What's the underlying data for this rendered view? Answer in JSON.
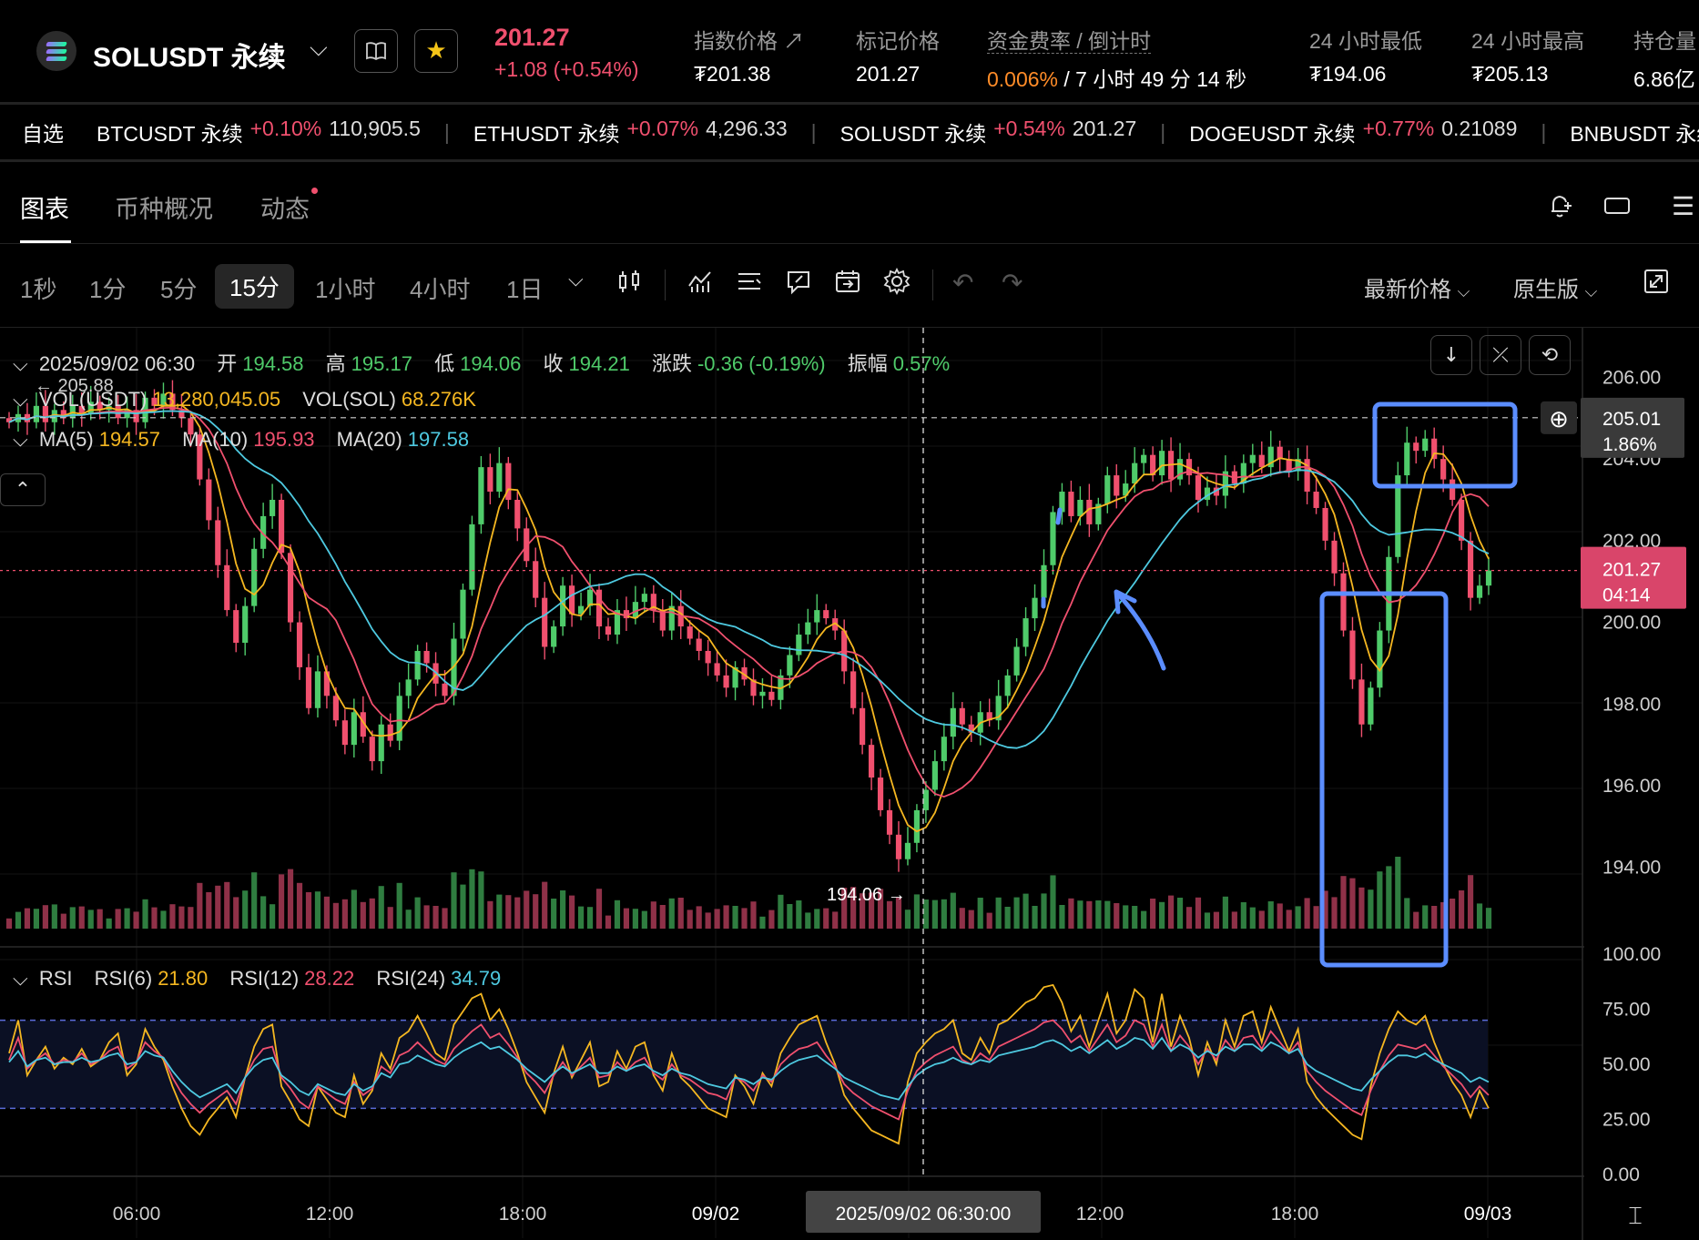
{
  "header": {
    "symbol": "SOLUSDT 永续",
    "last_price": "201.27",
    "change": "+1.08 (+0.54%)",
    "stats": [
      {
        "label": "指数价格",
        "value": "₮201.38"
      },
      {
        "label": "标记价格",
        "value": "201.27"
      },
      {
        "label": "资金费率 / 倒计时",
        "value_rate": "0.006%",
        "value_countdown": " / 7 小时 49 分 14 秒"
      },
      {
        "label": "24 小时最低",
        "value": "₮194.06"
      },
      {
        "label": "24 小时最高",
        "value": "₮205.13"
      },
      {
        "label": "持仓量",
        "value": "6.86亿"
      }
    ]
  },
  "ticker": {
    "favorites_label": "自选",
    "items": [
      {
        "name": "BTCUSDT 永续",
        "change": "+0.10%",
        "price": "110,905.5"
      },
      {
        "name": "ETHUSDT 永续",
        "change": "+0.07%",
        "price": "4,296.33"
      },
      {
        "name": "SOLUSDT 永续",
        "change": "+0.54%",
        "price": "201.27"
      },
      {
        "name": "DOGEUSDT 永续",
        "change": "+0.77%",
        "price": "0.21089"
      },
      {
        "name": "BNBUSDT 永续",
        "change": "",
        "price": ""
      }
    ]
  },
  "tabs": [
    "图表",
    "币种概况",
    "动态"
  ],
  "toolbar": {
    "timeframes": [
      "1秒",
      "1分",
      "5分",
      "15分",
      "1小时",
      "4小时",
      "1日"
    ],
    "active_timeframe": "15分",
    "price_type": "最新价格",
    "version": "原生版"
  },
  "legend": {
    "ohlc": {
      "date": "2025/09/02 06:30",
      "open_label": "开",
      "open": "194.58",
      "high_label": "高",
      "high": "195.17",
      "low_label": "低",
      "low": "194.06",
      "close_label": "收",
      "close": "194.21",
      "chg_label": "涨跌",
      "chg": "-0.36 (-0.19%)",
      "amp_label": "振幅",
      "amp": "0.57%"
    },
    "vol": {
      "usdt_label": "VOL(USDT)",
      "usdt": "13,280,045.05",
      "sol_label": "VOL(SOL)",
      "sol": "68.276K"
    },
    "ma": {
      "ma5_label": "MA(5)",
      "ma5": "194.57",
      "ma10_label": "MA(10)",
      "ma10": "195.93",
      "ma20_label": "MA(20)",
      "ma20": "197.58"
    },
    "rsi": {
      "label": "RSI",
      "rsi6_label": "RSI(6)",
      "rsi6": "21.80",
      "rsi12_label": "RSI(12)",
      "rsi12": "28.22",
      "rsi24_label": "RSI(24)",
      "rsi24": "34.79"
    }
  },
  "price_axis": [
    "206.00",
    "204.00",
    "202.00",
    "200.00",
    "198.00",
    "196.00",
    "194.00"
  ],
  "rsi_axis": [
    "100.00",
    "75.00",
    "50.00",
    "25.00",
    "0.00"
  ],
  "time_axis": [
    "06:00",
    "12:00",
    "18:00",
    "09/02",
    "12:00",
    "18:00",
    "09/03"
  ],
  "crosshair": {
    "time": "2025/09/02 06:30:00",
    "price": "205.01",
    "pct": "1.86%"
  },
  "current_price": {
    "price": "201.27",
    "countdown": "04:14"
  },
  "annotations": {
    "high_marker": "← 205.88",
    "low_marker": "194.06 →"
  },
  "colors": {
    "up": "#4fcb6a",
    "down": "#f0506e",
    "ma5": "#f5b721",
    "ma10": "#f0506e",
    "ma20": "#4ec9e0",
    "drawing": "#5b8dff"
  },
  "chart_data": {
    "type": "candlestick",
    "ylim": [
      192.5,
      206.5
    ],
    "closes": [
      204.9,
      205.1,
      204.9,
      205.3,
      204.9,
      205.2,
      205.0,
      205.3,
      205.1,
      205.4,
      205.2,
      205.3,
      205.0,
      205.2,
      204.9,
      205.5,
      205.3,
      205.6,
      205.2,
      205.0,
      204.6,
      203.5,
      202.5,
      201.4,
      200.3,
      199.5,
      200.4,
      201.8,
      202.6,
      203.0,
      201.7,
      200.0,
      198.9,
      197.9,
      198.8,
      198.2,
      197.6,
      197.0,
      197.8,
      197.2,
      196.6,
      197.5,
      197.1,
      198.2,
      198.6,
      199.3,
      199.0,
      198.5,
      198.2,
      199.6,
      200.8,
      202.4,
      203.8,
      203.2,
      203.9,
      203.0,
      202.3,
      201.5,
      200.6,
      199.4,
      199.9,
      200.9,
      200.2,
      200.4,
      200.8,
      199.9,
      199.7,
      200.3,
      200.1,
      200.5,
      200.7,
      200.3,
      199.8,
      200.4,
      199.9,
      199.6,
      199.3,
      199.0,
      198.7,
      198.4,
      198.9,
      198.6,
      198.2,
      198.3,
      198.1,
      198.7,
      199.2,
      199.7,
      200.0,
      200.3,
      200.1,
      199.8,
      198.8,
      197.9,
      197.0,
      196.2,
      195.4,
      194.8,
      194.2,
      194.6,
      195.4,
      195.9,
      196.6,
      197.2,
      197.9,
      197.5,
      197.3,
      197.8,
      197.6,
      198.2,
      198.7,
      199.4,
      200.1,
      200.6,
      201.4,
      202.7,
      203.2,
      202.6,
      203.0,
      202.4,
      202.9,
      203.6,
      203.1,
      203.4,
      203.9,
      204.1,
      203.6,
      204.2,
      203.5,
      204.0,
      203.6,
      203.0,
      203.3,
      203.1,
      203.7,
      203.4,
      203.9,
      204.1,
      203.8,
      204.3,
      204.0,
      203.7,
      204.0,
      203.2,
      202.8,
      202.0,
      201.2,
      199.8,
      198.6,
      197.5,
      198.4,
      199.8,
      201.6,
      203.6,
      204.4,
      204.2,
      204.5,
      204.0,
      203.5,
      203.0,
      202.0,
      200.6,
      200.9,
      201.27
    ],
    "rsi6": [
      55,
      70,
      45,
      52,
      58,
      48,
      53,
      50,
      57,
      49,
      52,
      60,
      64,
      45,
      50,
      66,
      58,
      52,
      40,
      30,
      22,
      18,
      25,
      30,
      35,
      26,
      44,
      58,
      66,
      68,
      40,
      33,
      25,
      22,
      40,
      34,
      28,
      26,
      45,
      32,
      38,
      55,
      48,
      62,
      65,
      72,
      64,
      55,
      52,
      68,
      74,
      80,
      82,
      70,
      75,
      66,
      55,
      42,
      35,
      28,
      46,
      58,
      44,
      52,
      60,
      40,
      42,
      56,
      48,
      58,
      60,
      45,
      38,
      55,
      44,
      40,
      35,
      30,
      28,
      26,
      45,
      40,
      32,
      46,
      40,
      55,
      62,
      68,
      70,
      72,
      60,
      50,
      36,
      30,
      25,
      20,
      18,
      16,
      14,
      42,
      55,
      60,
      64,
      66,
      70,
      55,
      52,
      62,
      55,
      68,
      70,
      74,
      78,
      80,
      85,
      86,
      78,
      65,
      72,
      58,
      70,
      82,
      64,
      70,
      84,
      80,
      60,
      82,
      58,
      72,
      62,
      45,
      60,
      50,
      70,
      58,
      72,
      74,
      60,
      76,
      66,
      56,
      66,
      42,
      35,
      30,
      26,
      22,
      18,
      16,
      40,
      55,
      66,
      74,
      70,
      68,
      72,
      60,
      50,
      42,
      36,
      26,
      38,
      30
    ],
    "rsi12": [
      52,
      62,
      48,
      52,
      55,
      50,
      52,
      51,
      55,
      50,
      52,
      56,
      58,
      48,
      51,
      60,
      56,
      53,
      44,
      37,
      32,
      28,
      32,
      35,
      38,
      32,
      44,
      52,
      57,
      58,
      44,
      39,
      33,
      30,
      40,
      37,
      34,
      32,
      42,
      36,
      39,
      49,
      46,
      54,
      56,
      60,
      56,
      52,
      50,
      57,
      61,
      65,
      68,
      62,
      64,
      59,
      53,
      46,
      42,
      37,
      45,
      51,
      45,
      49,
      53,
      44,
      45,
      51,
      47,
      51,
      53,
      46,
      43,
      50,
      45,
      43,
      40,
      37,
      36,
      34,
      44,
      42,
      38,
      45,
      42,
      50,
      54,
      57,
      58,
      60,
      54,
      49,
      41,
      37,
      34,
      31,
      29,
      27,
      25,
      38,
      47,
      51,
      54,
      56,
      58,
      52,
      50,
      55,
      52,
      58,
      60,
      62,
      64,
      66,
      69,
      70,
      66,
      60,
      63,
      56,
      62,
      68,
      60,
      63,
      70,
      68,
      58,
      68,
      56,
      63,
      58,
      50,
      57,
      52,
      61,
      56,
      62,
      63,
      57,
      65,
      60,
      55,
      60,
      47,
      42,
      38,
      35,
      32,
      29,
      27,
      38,
      47,
      54,
      59,
      58,
      57,
      59,
      54,
      49,
      45,
      41,
      35,
      40,
      36
    ],
    "rsi24": [
      51,
      56,
      49,
      52,
      53,
      50,
      51,
      51,
      53,
      51,
      52,
      54,
      55,
      50,
      51,
      56,
      54,
      53,
      47,
      42,
      38,
      35,
      37,
      39,
      41,
      37,
      44,
      49,
      52,
      53,
      45,
      42,
      38,
      36,
      41,
      39,
      37,
      36,
      41,
      38,
      40,
      46,
      44,
      50,
      51,
      54,
      52,
      50,
      49,
      53,
      56,
      58,
      60,
      57,
      58,
      55,
      52,
      48,
      45,
      42,
      46,
      49,
      46,
      48,
      50,
      46,
      46,
      49,
      47,
      49,
      50,
      47,
      45,
      48,
      46,
      45,
      43,
      41,
      40,
      39,
      44,
      43,
      41,
      44,
      43,
      47,
      50,
      52,
      53,
      54,
      51,
      48,
      44,
      42,
      40,
      38,
      36,
      35,
      34,
      40,
      45,
      48,
      50,
      51,
      53,
      51,
      50,
      52,
      51,
      54,
      55,
      56,
      57,
      58,
      60,
      61,
      59,
      56,
      58,
      55,
      58,
      61,
      57,
      59,
      62,
      61,
      57,
      62,
      56,
      59,
      57,
      53,
      56,
      54,
      58,
      56,
      59,
      59,
      56,
      60,
      58,
      55,
      57,
      50,
      47,
      45,
      43,
      41,
      39,
      38,
      43,
      47,
      51,
      54,
      54,
      53,
      55,
      52,
      50,
      48,
      46,
      42,
      44,
      42
    ]
  }
}
